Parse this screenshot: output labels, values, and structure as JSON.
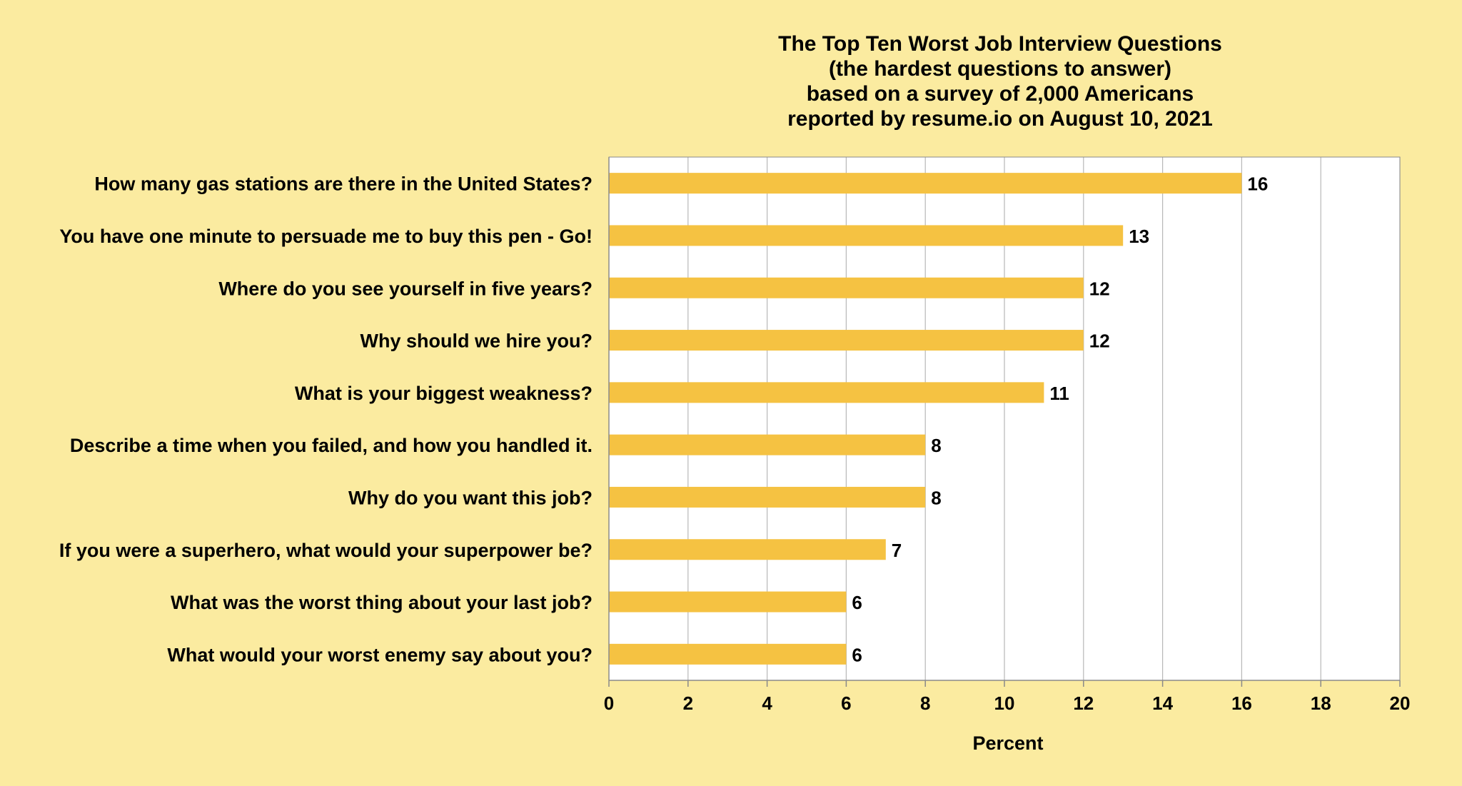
{
  "chart_data": {
    "type": "bar",
    "orientation": "horizontal",
    "title_lines": [
      "The Top Ten Worst Job Interview Questions",
      "(the hardest questions to answer)",
      "based on a survey of 2,000 Americans",
      "reported by resume.io on August 10, 2021"
    ],
    "categories": [
      "How many gas stations are there in the United States?",
      "You have one minute to persuade me to buy this pen - Go!",
      "Where do you see yourself in five years?",
      "Why should we hire you?",
      "What is your biggest weakness?",
      "Describe a time when you failed, and how you handled it.",
      "Why do you want this job?",
      "If you were a superhero, what would your superpower be?",
      "What was the worst thing about your last job?",
      "What would your worst enemy say about you?"
    ],
    "values": [
      16,
      13,
      12,
      12,
      11,
      8,
      8,
      7,
      6,
      6
    ],
    "xlabel": "Percent",
    "ylabel": "",
    "xlim": [
      0,
      20
    ],
    "xticks": [
      "0",
      "2",
      "4",
      "6",
      "8",
      "10",
      "12",
      "14",
      "16",
      "18",
      "20"
    ],
    "grid": "vertical",
    "legend": "none",
    "data_labels": true
  },
  "colors": {
    "background": "#fbeba0",
    "plot_area": "#ffffff",
    "bar": "#f5c242",
    "gridline": "#b8b8b8",
    "axis": "#8a8a8a",
    "text": "#000000"
  }
}
